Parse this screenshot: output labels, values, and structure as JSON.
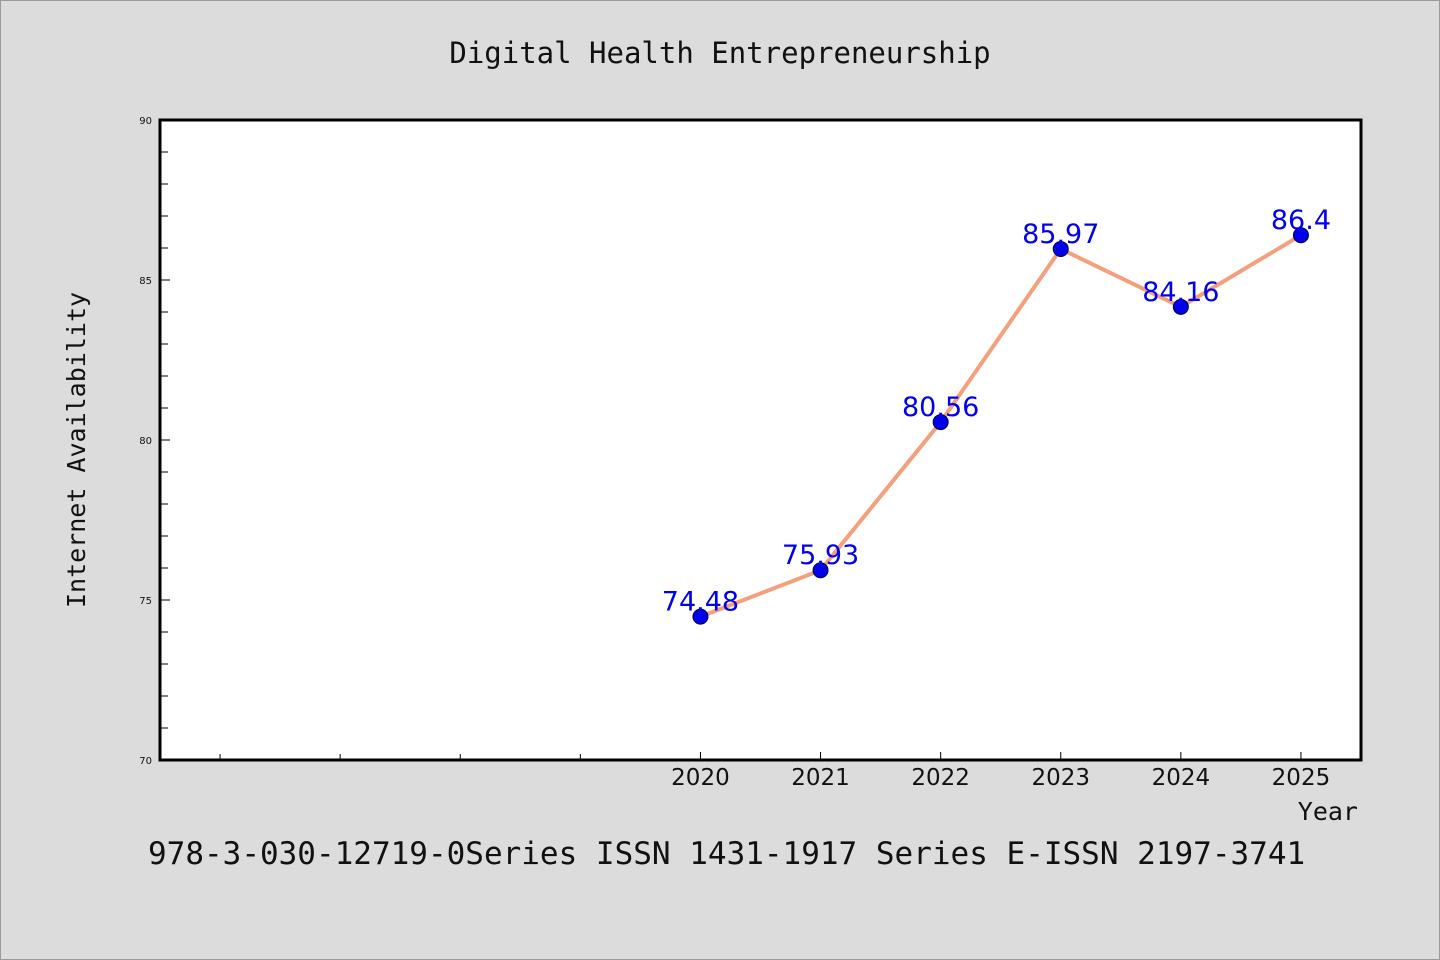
{
  "chart_data": {
    "type": "line",
    "title": "Digital Health Entrepreneurship",
    "xlabel": "Year",
    "ylabel": "Internet Availability",
    "x": [
      2020,
      2021,
      2022,
      2023,
      2024,
      2025
    ],
    "values": [
      74.48,
      75.93,
      80.56,
      85.97,
      84.16,
      86.4
    ],
    "data_labels": [
      "74.48",
      "75.93",
      "80.56",
      "85.97",
      "84.16",
      "86.4"
    ],
    "ylim": [
      70,
      90
    ],
    "yticks": [
      70,
      75,
      80,
      85,
      90
    ],
    "xlim": [
      2015.5,
      2025.5
    ],
    "xticks": [
      2020,
      2021,
      2022,
      2023,
      2024,
      2025
    ],
    "x_minor_ticks": [
      2016,
      2017,
      2018,
      2019
    ],
    "grid": false,
    "legend": "none",
    "colors": {
      "line": "#f4a07c",
      "marker": "#0000ee",
      "label": "#0000ee"
    }
  },
  "footer": "978-3-030-12719-0Series ISSN 1431-1917 Series E-ISSN 2197-3741"
}
